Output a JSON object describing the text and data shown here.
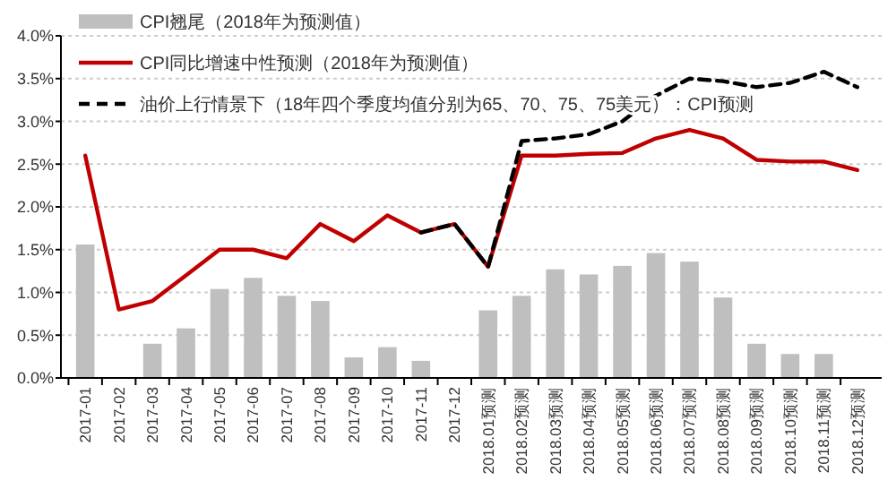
{
  "chart_data": {
    "type": "bar",
    "categories": [
      "2017-01",
      "2017-02",
      "2017-03",
      "2017-04",
      "2017-05",
      "2017-06",
      "2017-07",
      "2017-08",
      "2017-09",
      "2017-10",
      "2017-11",
      "2017-12",
      "2018.01预测",
      "2018.02预测",
      "2018.03预测",
      "2018.04预测",
      "2018.05预测",
      "2018.06预测",
      "2018.07预测",
      "2018.08预测",
      "2018.09预测",
      "2018.10预测",
      "2018.11预测",
      "2018.12预测"
    ],
    "series": [
      {
        "name": "CPI翘尾（2018年为预测值）",
        "color": "#bfbfbf",
        "values": [
          1.56,
          0,
          0.4,
          0.58,
          1.04,
          1.17,
          0.96,
          0.9,
          0.24,
          0.36,
          0.2,
          0,
          0.79,
          0.96,
          1.27,
          1.21,
          1.31,
          1.46,
          1.36,
          0.94,
          0.4,
          0.28,
          0.28,
          0
        ]
      },
      {
        "name": "CPI同比增速中性预测（2018年为预测值）",
        "type": "line",
        "color": "#c00000",
        "line_style": "solid",
        "values": [
          2.6,
          0.8,
          0.9,
          1.2,
          1.5,
          1.5,
          1.4,
          1.8,
          1.6,
          1.9,
          1.7,
          1.8,
          1.3,
          2.6,
          2.6,
          2.62,
          2.63,
          2.8,
          2.9,
          2.8,
          2.55,
          2.53,
          2.53,
          2.43
        ]
      },
      {
        "name": "油价上行情景下（18年四个季度均值分别为65、70、75、75美元）：CPI预测",
        "type": "line",
        "color": "#000000",
        "line_style": "dashed",
        "values": [
          null,
          null,
          null,
          null,
          null,
          null,
          null,
          null,
          null,
          null,
          1.7,
          1.8,
          1.3,
          2.77,
          2.8,
          2.85,
          3.0,
          3.3,
          3.5,
          3.47,
          3.4,
          3.45,
          3.58,
          3.4
        ]
      }
    ],
    "ylim": [
      0,
      4
    ],
    "yticks": [
      {
        "value": 0,
        "label": "0.0%"
      },
      {
        "value": 0.5,
        "label": "0.5%"
      },
      {
        "value": 1,
        "label": "1.0%"
      },
      {
        "value": 1.5,
        "label": "1.5%"
      },
      {
        "value": 2,
        "label": "2.0%"
      },
      {
        "value": 2.5,
        "label": "2.5%"
      },
      {
        "value": 3,
        "label": "3.0%"
      },
      {
        "value": 3.5,
        "label": "3.5%"
      },
      {
        "value": 4,
        "label": "4.0%"
      }
    ],
    "grid": "y",
    "legend": "top left"
  }
}
